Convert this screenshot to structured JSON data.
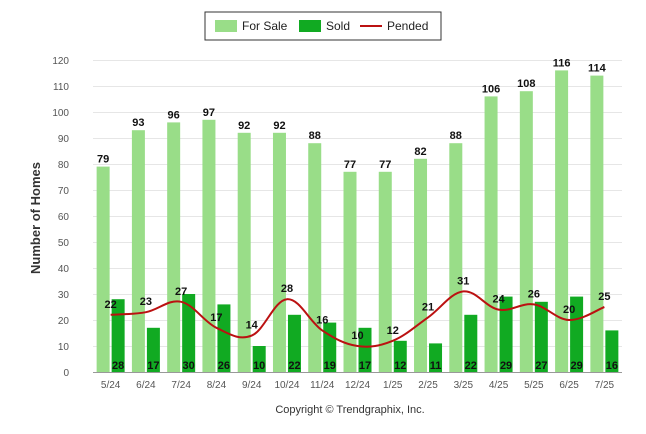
{
  "chart_data": {
    "type": "bar",
    "categories": [
      "5/24",
      "6/24",
      "7/24",
      "8/24",
      "9/24",
      "10/24",
      "11/24",
      "12/24",
      "1/25",
      "2/25",
      "3/25",
      "4/25",
      "5/25",
      "6/25",
      "7/25"
    ],
    "series": [
      {
        "name": "For Sale",
        "type": "bar",
        "color": "#99dd88",
        "values": [
          79,
          93,
          96,
          97,
          92,
          92,
          88,
          77,
          77,
          82,
          88,
          106,
          108,
          116,
          114
        ]
      },
      {
        "name": "Sold",
        "type": "bar",
        "color": "#11aa22",
        "values": [
          28,
          17,
          30,
          26,
          10,
          22,
          19,
          17,
          12,
          11,
          22,
          29,
          27,
          29,
          16
        ]
      },
      {
        "name": "Pended",
        "type": "line",
        "color": "#bb1111",
        "values": [
          22,
          23,
          27,
          17,
          14,
          28,
          16,
          10,
          12,
          21,
          31,
          24,
          26,
          20,
          25
        ]
      }
    ],
    "ylabel": "Number of Homes",
    "ylim": [
      0,
      120
    ],
    "yticks": [
      0,
      10,
      20,
      30,
      40,
      50,
      60,
      70,
      80,
      90,
      100,
      110,
      120
    ],
    "grid": true,
    "legend": "top-center"
  },
  "footer": {
    "copyright": "Copyright © Trendgraphix, Inc."
  }
}
